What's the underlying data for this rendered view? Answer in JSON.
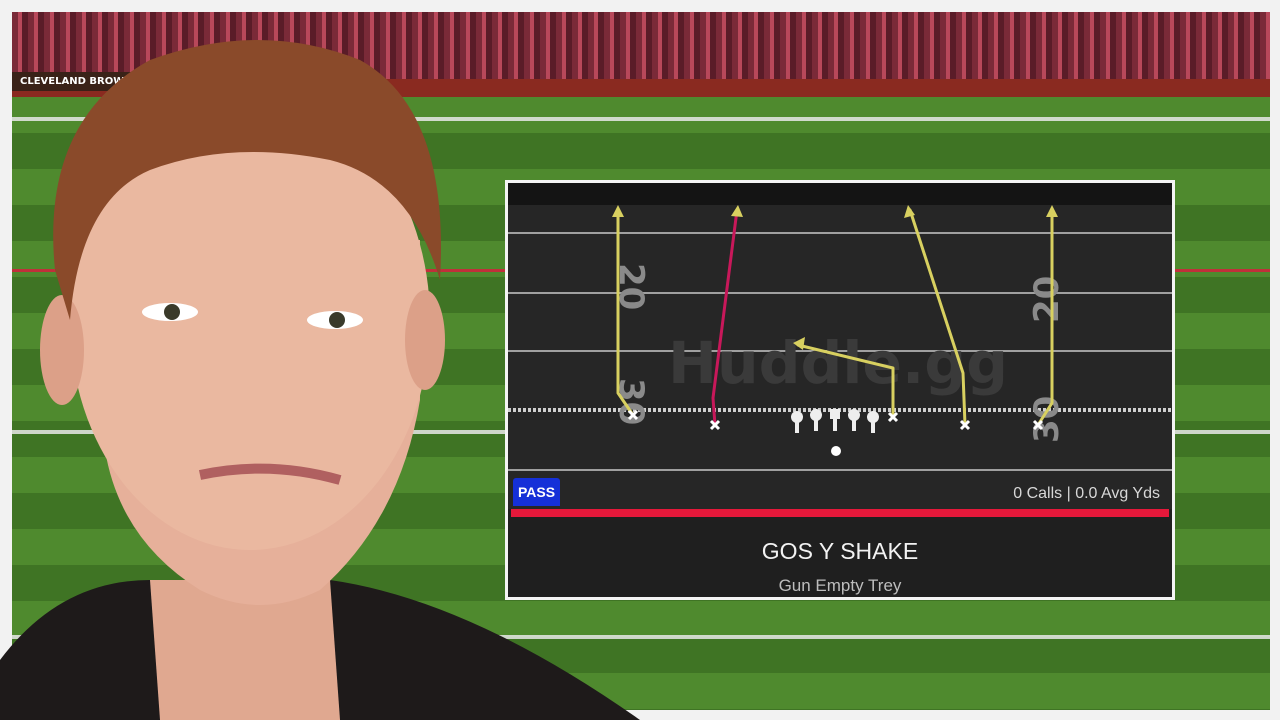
{
  "stadium": {
    "banner_text": "CLEVELAND BROWNS"
  },
  "play_card": {
    "type_badge": "PASS",
    "stats": "0 Calls | 0.0 Avg Yds",
    "play_name": "GOS Y SHAKE",
    "formation": "Gun Empty Trey",
    "watermark": "Huddle.gg",
    "yard_numbers": [
      "20",
      "30"
    ],
    "colors": {
      "primary_route": "#d8d060",
      "highlight_route": "#c8185a",
      "badge": "#1530d8",
      "accent_bar": "#e5183a"
    }
  }
}
